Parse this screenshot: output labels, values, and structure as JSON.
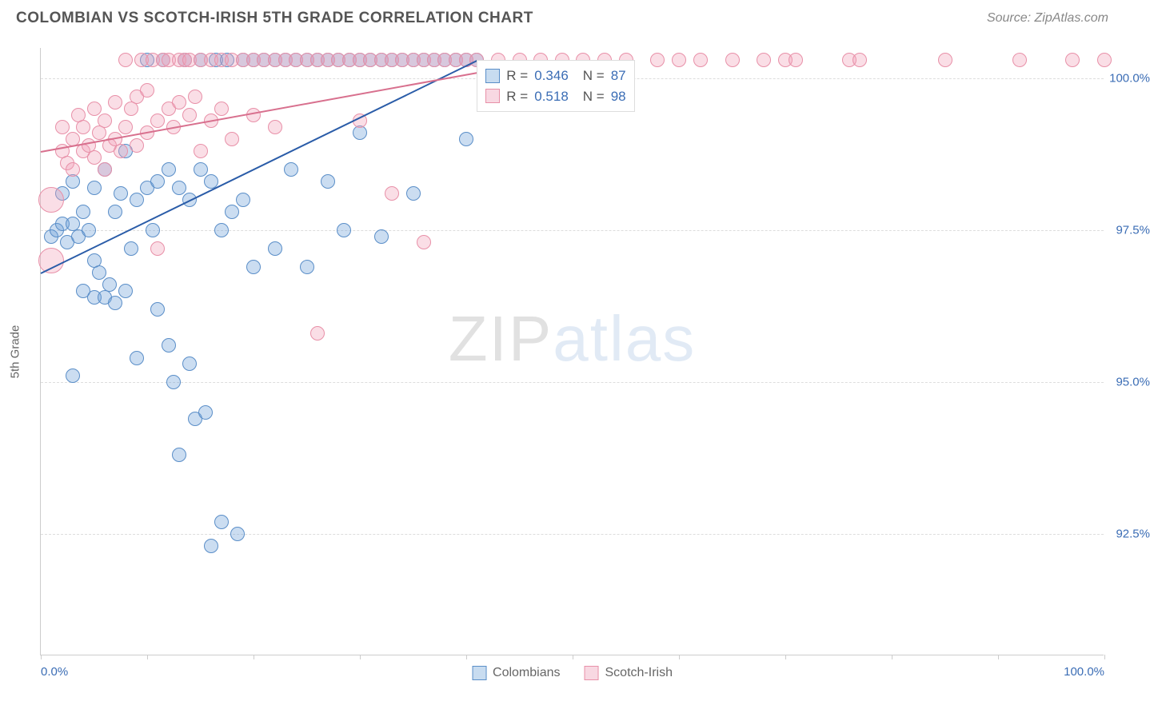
{
  "title": "COLOMBIAN VS SCOTCH-IRISH 5TH GRADE CORRELATION CHART",
  "source": "Source: ZipAtlas.com",
  "watermark": {
    "part1": "ZIP",
    "part2": "atlas"
  },
  "chart": {
    "type": "scatter",
    "y_axis_label": "5th Grade",
    "x_range": [
      0,
      100
    ],
    "y_range": [
      90.5,
      100.5
    ],
    "x_ticks": [
      0,
      10,
      20,
      30,
      40,
      50,
      60,
      70,
      80,
      90,
      100
    ],
    "x_tick_labels_shown": {
      "0": "0.0%",
      "100": "100.0%"
    },
    "y_gridlines": [
      92.5,
      95.0,
      97.5,
      100.0
    ],
    "y_tick_labels": {
      "92.5": "92.5%",
      "95.0": "95.0%",
      "97.5": "97.5%",
      "100.0": "100.0%"
    },
    "grid_color": "#dddddd",
    "axis_color": "#cccccc",
    "background_color": "#ffffff",
    "tick_label_color": "#3b6db5",
    "tick_label_fontsize": 15,
    "marker_radius": 9,
    "marker_radius_large": 16,
    "marker_border_width": 1.5,
    "marker_fill_opacity": 0.35
  },
  "series": {
    "colombians": {
      "label": "Colombians",
      "fill_color": "#6a9ed8",
      "border_color": "#5a8ec8",
      "trend_color": "#2a5ca8",
      "trend": {
        "x1": 0,
        "y1": 96.8,
        "x2": 41,
        "y2": 100.3
      },
      "R": "0.346",
      "N": "87",
      "points": [
        {
          "x": 1,
          "y": 97.4
        },
        {
          "x": 1.5,
          "y": 97.5
        },
        {
          "x": 2,
          "y": 97.6
        },
        {
          "x": 2,
          "y": 98.1
        },
        {
          "x": 2.5,
          "y": 97.3
        },
        {
          "x": 3,
          "y": 97.6
        },
        {
          "x": 3,
          "y": 98.3
        },
        {
          "x": 3,
          "y": 95.1
        },
        {
          "x": 3.5,
          "y": 97.4
        },
        {
          "x": 4,
          "y": 97.8
        },
        {
          "x": 4,
          "y": 96.5
        },
        {
          "x": 4.5,
          "y": 97.5
        },
        {
          "x": 5,
          "y": 96.4
        },
        {
          "x": 5,
          "y": 98.2
        },
        {
          "x": 5,
          "y": 97.0
        },
        {
          "x": 5.5,
          "y": 96.8
        },
        {
          "x": 6,
          "y": 96.4
        },
        {
          "x": 6,
          "y": 98.5
        },
        {
          "x": 6.5,
          "y": 96.6
        },
        {
          "x": 7,
          "y": 97.8
        },
        {
          "x": 7,
          "y": 96.3
        },
        {
          "x": 7.5,
          "y": 98.1
        },
        {
          "x": 8,
          "y": 96.5
        },
        {
          "x": 8,
          "y": 98.8
        },
        {
          "x": 8.5,
          "y": 97.2
        },
        {
          "x": 9,
          "y": 95.4
        },
        {
          "x": 9,
          "y": 98.0
        },
        {
          "x": 10,
          "y": 98.2
        },
        {
          "x": 10,
          "y": 100.3
        },
        {
          "x": 10.5,
          "y": 97.5
        },
        {
          "x": 11,
          "y": 98.3
        },
        {
          "x": 11,
          "y": 96.2
        },
        {
          "x": 11.5,
          "y": 100.3
        },
        {
          "x": 12,
          "y": 95.6
        },
        {
          "x": 12,
          "y": 98.5
        },
        {
          "x": 12.5,
          "y": 95.0
        },
        {
          "x": 13,
          "y": 98.2
        },
        {
          "x": 13,
          "y": 93.8
        },
        {
          "x": 13.5,
          "y": 100.3
        },
        {
          "x": 14,
          "y": 98.0
        },
        {
          "x": 14,
          "y": 95.3
        },
        {
          "x": 14.5,
          "y": 94.4
        },
        {
          "x": 15,
          "y": 98.5
        },
        {
          "x": 15,
          "y": 100.3
        },
        {
          "x": 15.5,
          "y": 94.5
        },
        {
          "x": 16,
          "y": 92.3
        },
        {
          "x": 16,
          "y": 98.3
        },
        {
          "x": 16.5,
          "y": 100.3
        },
        {
          "x": 17,
          "y": 92.7
        },
        {
          "x": 17,
          "y": 97.5
        },
        {
          "x": 17.5,
          "y": 100.3
        },
        {
          "x": 18,
          "y": 97.8
        },
        {
          "x": 18.5,
          "y": 92.5
        },
        {
          "x": 19,
          "y": 98.0
        },
        {
          "x": 19,
          "y": 100.3
        },
        {
          "x": 20,
          "y": 96.9
        },
        {
          "x": 20,
          "y": 100.3
        },
        {
          "x": 21,
          "y": 100.3
        },
        {
          "x": 22,
          "y": 97.2
        },
        {
          "x": 22,
          "y": 100.3
        },
        {
          "x": 23,
          "y": 100.3
        },
        {
          "x": 23.5,
          "y": 98.5
        },
        {
          "x": 24,
          "y": 100.3
        },
        {
          "x": 25,
          "y": 96.9
        },
        {
          "x": 25,
          "y": 100.3
        },
        {
          "x": 26,
          "y": 100.3
        },
        {
          "x": 27,
          "y": 100.3
        },
        {
          "x": 27,
          "y": 98.3
        },
        {
          "x": 28,
          "y": 100.3
        },
        {
          "x": 28.5,
          "y": 97.5
        },
        {
          "x": 29,
          "y": 100.3
        },
        {
          "x": 30,
          "y": 100.3
        },
        {
          "x": 30,
          "y": 99.1
        },
        {
          "x": 31,
          "y": 100.3
        },
        {
          "x": 32,
          "y": 100.3
        },
        {
          "x": 32,
          "y": 97.4
        },
        {
          "x": 33,
          "y": 100.3
        },
        {
          "x": 34,
          "y": 100.3
        },
        {
          "x": 35,
          "y": 100.3
        },
        {
          "x": 35,
          "y": 98.1
        },
        {
          "x": 36,
          "y": 100.3
        },
        {
          "x": 37,
          "y": 100.3
        },
        {
          "x": 38,
          "y": 100.3
        },
        {
          "x": 39,
          "y": 100.3
        },
        {
          "x": 40,
          "y": 100.3
        },
        {
          "x": 40,
          "y": 99.0
        },
        {
          "x": 41,
          "y": 100.3
        }
      ]
    },
    "scotch_irish": {
      "label": "Scotch-Irish",
      "fill_color": "#f0a0b8",
      "border_color": "#e890a8",
      "trend_color": "#d8708e",
      "trend": {
        "x1": 0,
        "y1": 98.8,
        "x2": 41,
        "y2": 100.1
      },
      "R": "0.518",
      "N": "98",
      "points": [
        {
          "x": 1,
          "y": 97.0,
          "r": 16
        },
        {
          "x": 1,
          "y": 98.0,
          "r": 16
        },
        {
          "x": 2,
          "y": 98.8
        },
        {
          "x": 2,
          "y": 99.2
        },
        {
          "x": 2.5,
          "y": 98.6
        },
        {
          "x": 3,
          "y": 99.0
        },
        {
          "x": 3,
          "y": 98.5
        },
        {
          "x": 3.5,
          "y": 99.4
        },
        {
          "x": 4,
          "y": 98.8
        },
        {
          "x": 4,
          "y": 99.2
        },
        {
          "x": 4.5,
          "y": 98.9
        },
        {
          "x": 5,
          "y": 99.5
        },
        {
          "x": 5,
          "y": 98.7
        },
        {
          "x": 5.5,
          "y": 99.1
        },
        {
          "x": 6,
          "y": 98.5
        },
        {
          "x": 6,
          "y": 99.3
        },
        {
          "x": 6.5,
          "y": 98.9
        },
        {
          "x": 7,
          "y": 99.6
        },
        {
          "x": 7,
          "y": 99.0
        },
        {
          "x": 7.5,
          "y": 98.8
        },
        {
          "x": 8,
          "y": 99.2
        },
        {
          "x": 8,
          "y": 100.3
        },
        {
          "x": 8.5,
          "y": 99.5
        },
        {
          "x": 9,
          "y": 98.9
        },
        {
          "x": 9,
          "y": 99.7
        },
        {
          "x": 9.5,
          "y": 100.3
        },
        {
          "x": 10,
          "y": 99.1
        },
        {
          "x": 10,
          "y": 99.8
        },
        {
          "x": 10.5,
          "y": 100.3
        },
        {
          "x": 11,
          "y": 99.3
        },
        {
          "x": 11,
          "y": 97.2
        },
        {
          "x": 11.5,
          "y": 100.3
        },
        {
          "x": 12,
          "y": 99.5
        },
        {
          "x": 12,
          "y": 100.3
        },
        {
          "x": 12.5,
          "y": 99.2
        },
        {
          "x": 13,
          "y": 100.3
        },
        {
          "x": 13,
          "y": 99.6
        },
        {
          "x": 13.5,
          "y": 100.3
        },
        {
          "x": 14,
          "y": 99.4
        },
        {
          "x": 14,
          "y": 100.3
        },
        {
          "x": 14.5,
          "y": 99.7
        },
        {
          "x": 15,
          "y": 100.3
        },
        {
          "x": 15,
          "y": 98.8
        },
        {
          "x": 16,
          "y": 100.3
        },
        {
          "x": 16,
          "y": 99.3
        },
        {
          "x": 17,
          "y": 100.3
        },
        {
          "x": 17,
          "y": 99.5
        },
        {
          "x": 18,
          "y": 100.3
        },
        {
          "x": 18,
          "y": 99.0
        },
        {
          "x": 19,
          "y": 100.3
        },
        {
          "x": 20,
          "y": 100.3
        },
        {
          "x": 20,
          "y": 99.4
        },
        {
          "x": 21,
          "y": 100.3
        },
        {
          "x": 22,
          "y": 100.3
        },
        {
          "x": 22,
          "y": 99.2
        },
        {
          "x": 23,
          "y": 100.3
        },
        {
          "x": 24,
          "y": 100.3
        },
        {
          "x": 25,
          "y": 100.3
        },
        {
          "x": 26,
          "y": 100.3
        },
        {
          "x": 26,
          "y": 95.8
        },
        {
          "x": 27,
          "y": 100.3
        },
        {
          "x": 28,
          "y": 100.3
        },
        {
          "x": 29,
          "y": 100.3
        },
        {
          "x": 30,
          "y": 100.3
        },
        {
          "x": 30,
          "y": 99.3
        },
        {
          "x": 31,
          "y": 100.3
        },
        {
          "x": 32,
          "y": 100.3
        },
        {
          "x": 33,
          "y": 100.3
        },
        {
          "x": 33,
          "y": 98.1
        },
        {
          "x": 34,
          "y": 100.3
        },
        {
          "x": 35,
          "y": 100.3
        },
        {
          "x": 36,
          "y": 100.3
        },
        {
          "x": 36,
          "y": 97.3
        },
        {
          "x": 37,
          "y": 100.3
        },
        {
          "x": 38,
          "y": 100.3
        },
        {
          "x": 39,
          "y": 100.3
        },
        {
          "x": 40,
          "y": 100.3
        },
        {
          "x": 41,
          "y": 100.3
        },
        {
          "x": 43,
          "y": 100.3
        },
        {
          "x": 45,
          "y": 100.3
        },
        {
          "x": 47,
          "y": 100.3
        },
        {
          "x": 49,
          "y": 100.3
        },
        {
          "x": 51,
          "y": 100.3
        },
        {
          "x": 53,
          "y": 100.3
        },
        {
          "x": 55,
          "y": 100.3
        },
        {
          "x": 58,
          "y": 100.3
        },
        {
          "x": 60,
          "y": 100.3
        },
        {
          "x": 62,
          "y": 100.3
        },
        {
          "x": 65,
          "y": 100.3
        },
        {
          "x": 68,
          "y": 100.3
        },
        {
          "x": 70,
          "y": 100.3
        },
        {
          "x": 71,
          "y": 100.3
        },
        {
          "x": 76,
          "y": 100.3
        },
        {
          "x": 77,
          "y": 100.3
        },
        {
          "x": 85,
          "y": 100.3
        },
        {
          "x": 92,
          "y": 100.3
        },
        {
          "x": 97,
          "y": 100.3
        },
        {
          "x": 100,
          "y": 100.3
        }
      ]
    }
  },
  "stats_box": {
    "rows": [
      {
        "swatch_fill": "#c8dcf0",
        "swatch_border": "#5a8ec8",
        "R_label": "R =",
        "R": "0.346",
        "N_label": "N =",
        "N": "87"
      },
      {
        "swatch_fill": "#f8d8e2",
        "swatch_border": "#e890a8",
        "R_label": "R =",
        "R": "0.518",
        "N_label": "N =",
        "N": "98"
      }
    ]
  },
  "legend": {
    "items": [
      {
        "fill": "#c8dcf0",
        "border": "#5a8ec8",
        "label": "Colombians"
      },
      {
        "fill": "#f8d8e2",
        "border": "#e890a8",
        "label": "Scotch-Irish"
      }
    ]
  }
}
